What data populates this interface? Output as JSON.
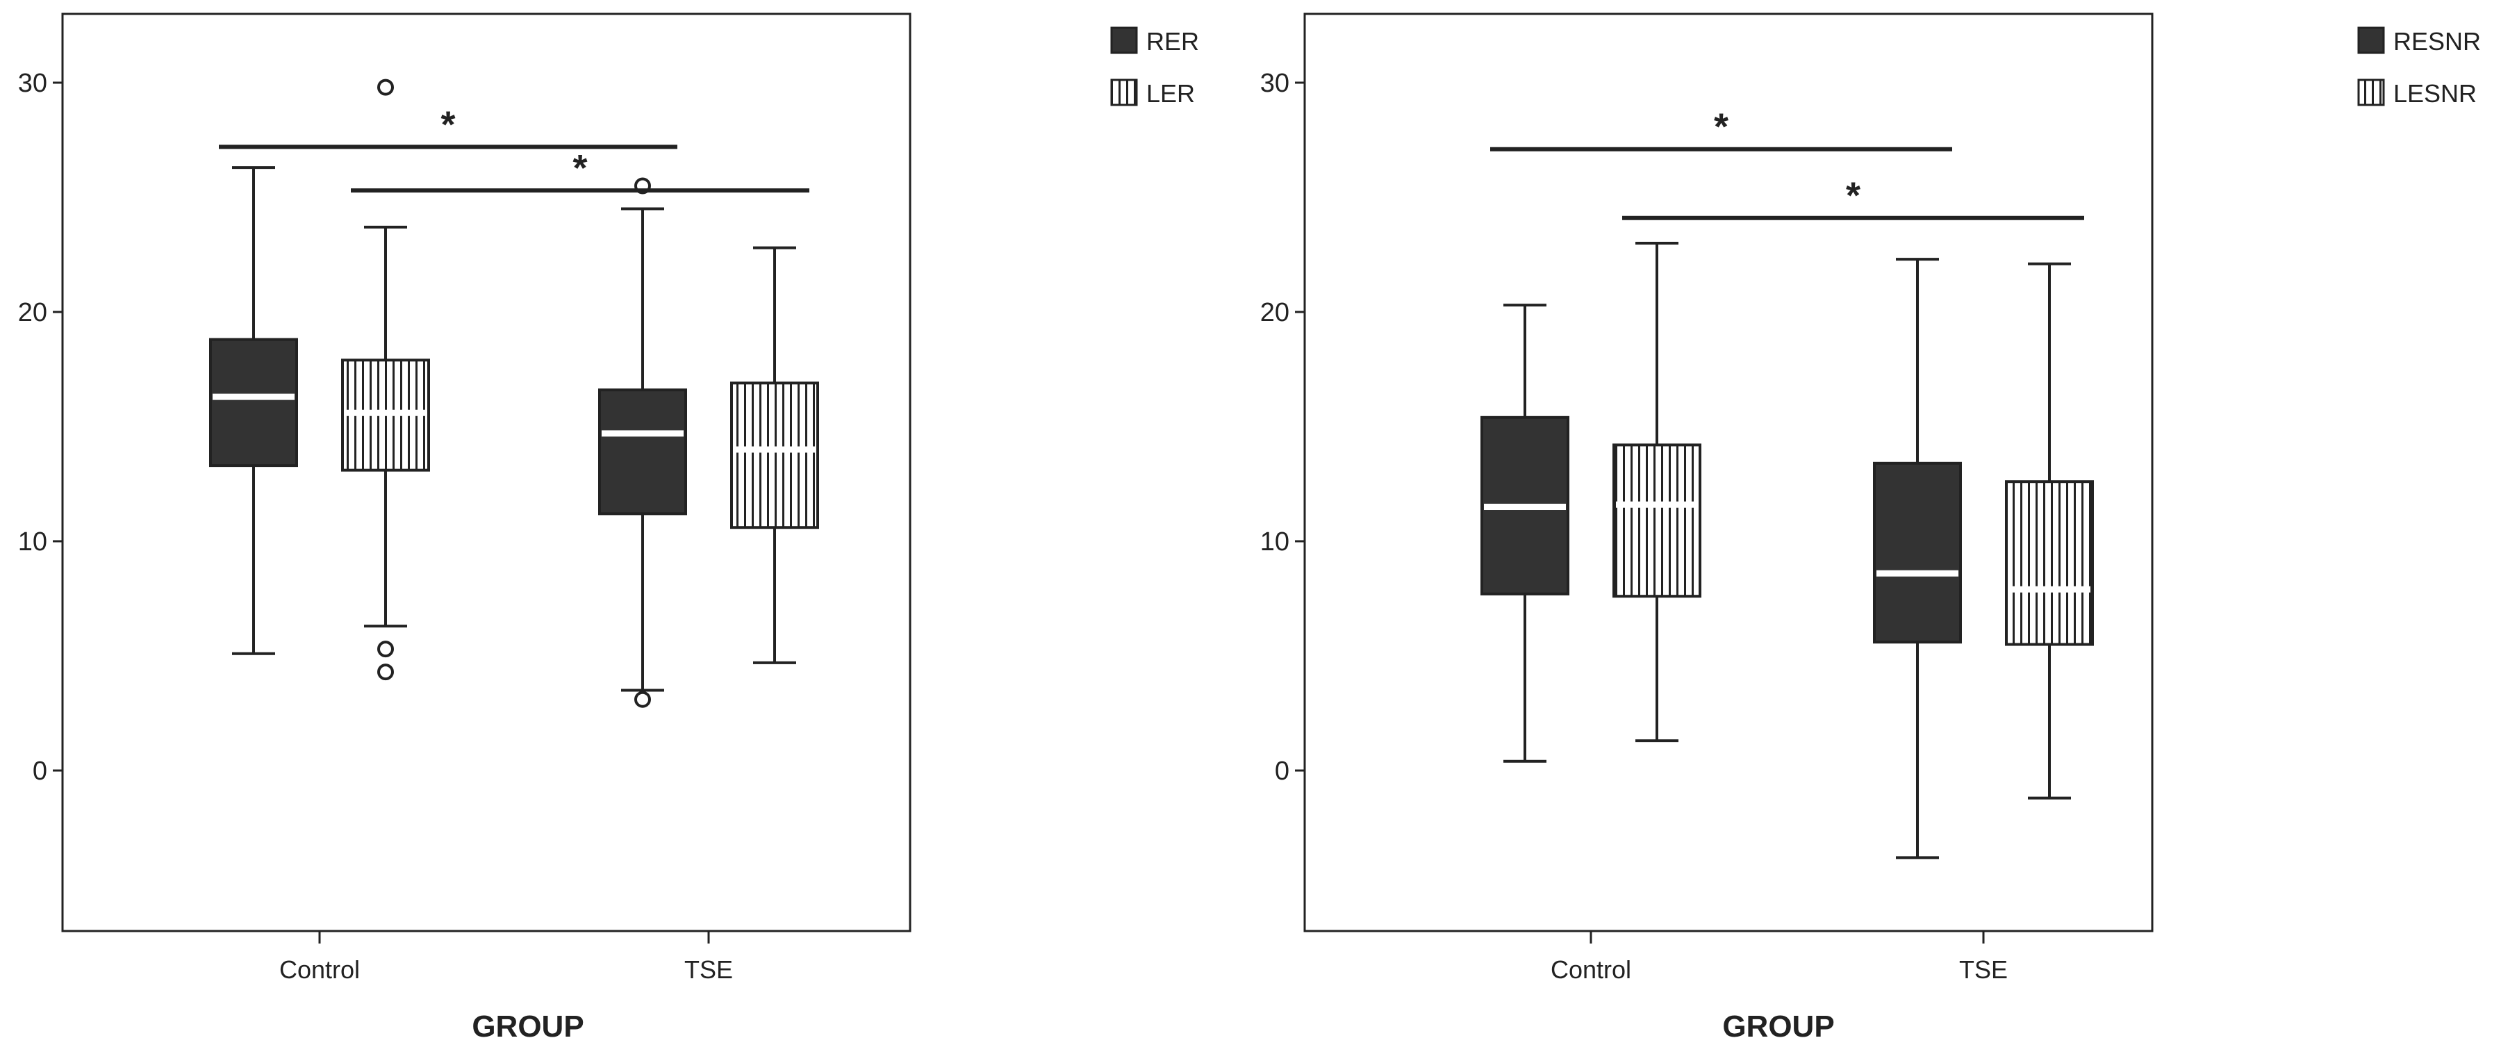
{
  "colors": {
    "solid_fill": "#333333",
    "hatch_fill": "#ffffff",
    "hatch_line": "#222222",
    "median_line": "#ffffff",
    "axis": "#222222",
    "panel_bg": "#f2f2f2"
  },
  "chart_data": [
    {
      "type": "boxplot",
      "title": "",
      "xlabel": "GROUP",
      "ylabel": "",
      "ylim": [
        -7,
        33
      ],
      "yticks": [
        0,
        10,
        20,
        30
      ],
      "ytick_labels": [
        "0",
        "10",
        "20",
        "30"
      ],
      "categories": [
        "Control",
        "TSE"
      ],
      "legend": {
        "placement": "outside-right",
        "entries": [
          "RER",
          "LER"
        ]
      },
      "series": [
        {
          "name": "RER",
          "pattern": "solid",
          "boxes": [
            {
              "category": "Control",
              "whisker_low": 5.1,
              "q1": 13.3,
              "median": 16.3,
              "q3": 18.8,
              "whisker_high": 26.3,
              "outliers": []
            },
            {
              "category": "TSE",
              "whisker_low": 3.5,
              "q1": 11.2,
              "median": 14.7,
              "q3": 16.6,
              "whisker_high": 24.5,
              "outliers": [
                3.1,
                25.5
              ]
            }
          ]
        },
        {
          "name": "LER",
          "pattern": "vertical-hatch",
          "boxes": [
            {
              "category": "Control",
              "whisker_low": 6.3,
              "q1": 13.1,
              "median": 15.6,
              "q3": 17.9,
              "whisker_high": 23.7,
              "outliers": [
                4.3,
                5.3,
                29.8
              ]
            },
            {
              "category": "TSE",
              "whisker_low": 4.7,
              "q1": 10.6,
              "median": 14.0,
              "q3": 16.9,
              "whisker_high": 22.8,
              "outliers": []
            }
          ]
        }
      ],
      "annotations": [
        {
          "text": "*",
          "from": "Control RER",
          "to": "TSE RER",
          "y": 27.2
        },
        {
          "text": "*",
          "from": "Control LER",
          "to": "TSE LER",
          "y": 25.3
        }
      ]
    },
    {
      "type": "boxplot",
      "title": "",
      "xlabel": "GROUP",
      "ylabel": "",
      "ylim": [
        -7,
        33
      ],
      "yticks": [
        0,
        10,
        20,
        30
      ],
      "ytick_labels": [
        "0",
        "10",
        "20",
        "30"
      ],
      "categories": [
        "Control",
        "TSE"
      ],
      "legend": {
        "placement": "outside-right",
        "entries": [
          "RESNR",
          "LESNR"
        ]
      },
      "series": [
        {
          "name": "RESNR",
          "pattern": "solid",
          "boxes": [
            {
              "category": "Control",
              "whisker_low": 0.4,
              "q1": 7.7,
              "median": 11.5,
              "q3": 15.4,
              "whisker_high": 20.3,
              "outliers": []
            },
            {
              "category": "TSE",
              "whisker_low": -3.8,
              "q1": 5.6,
              "median": 8.6,
              "q3": 13.4,
              "whisker_high": 22.3,
              "outliers": []
            }
          ]
        },
        {
          "name": "LESNR",
          "pattern": "vertical-hatch",
          "boxes": [
            {
              "category": "Control",
              "whisker_low": 1.3,
              "q1": 7.6,
              "median": 11.6,
              "q3": 14.2,
              "whisker_high": 23.0,
              "outliers": []
            },
            {
              "category": "TSE",
              "whisker_low": -1.2,
              "q1": 5.5,
              "median": 7.9,
              "q3": 12.6,
              "whisker_high": 22.1,
              "outliers": []
            }
          ]
        }
      ],
      "annotations": [
        {
          "text": "*",
          "from": "Control RESNR",
          "to": "TSE RESNR",
          "y": 27.1
        },
        {
          "text": "*",
          "from": "Control LESNR",
          "to": "TSE LESNR",
          "y": 24.1
        }
      ]
    }
  ]
}
